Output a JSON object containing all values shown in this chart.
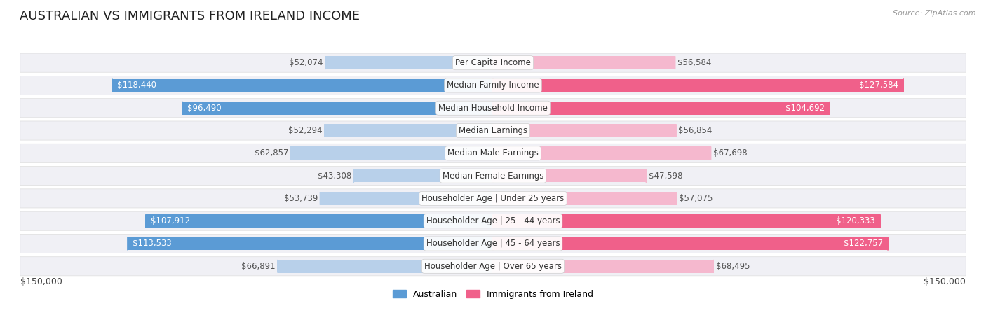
{
  "title": "AUSTRALIAN VS IMMIGRANTS FROM IRELAND INCOME",
  "source": "Source: ZipAtlas.com",
  "categories": [
    "Per Capita Income",
    "Median Family Income",
    "Median Household Income",
    "Median Earnings",
    "Median Male Earnings",
    "Median Female Earnings",
    "Householder Age | Under 25 years",
    "Householder Age | 25 - 44 years",
    "Householder Age | 45 - 64 years",
    "Householder Age | Over 65 years"
  ],
  "australian_values": [
    52074,
    118440,
    96490,
    52294,
    62857,
    43308,
    53739,
    107912,
    113533,
    66891
  ],
  "ireland_values": [
    56584,
    127584,
    104692,
    56854,
    67698,
    47598,
    57075,
    120333,
    122757,
    68495
  ],
  "australian_labels": [
    "$52,074",
    "$118,440",
    "$96,490",
    "$52,294",
    "$62,857",
    "$43,308",
    "$53,739",
    "$107,912",
    "$113,533",
    "$66,891"
  ],
  "ireland_labels": [
    "$56,584",
    "$127,584",
    "$104,692",
    "$56,854",
    "$67,698",
    "$47,598",
    "$57,075",
    "$120,333",
    "$122,757",
    "$68,495"
  ],
  "max_value": 150000,
  "australian_color_light": "#b8d0ea",
  "australian_color_solid": "#5b9bd5",
  "ireland_color_light": "#f5b8ce",
  "ireland_color_solid": "#f0608a",
  "label_dark": "#555555",
  "label_white": "#ffffff",
  "background_color": "#ffffff",
  "row_bg": "#f0f0f5",
  "legend_australian": "Australian",
  "legend_ireland": "Immigrants from Ireland",
  "x_label_left": "$150,000",
  "x_label_right": "$150,000",
  "title_fontsize": 13,
  "label_fontsize": 8.5,
  "category_fontsize": 8.5,
  "solid_threshold": 0.55
}
